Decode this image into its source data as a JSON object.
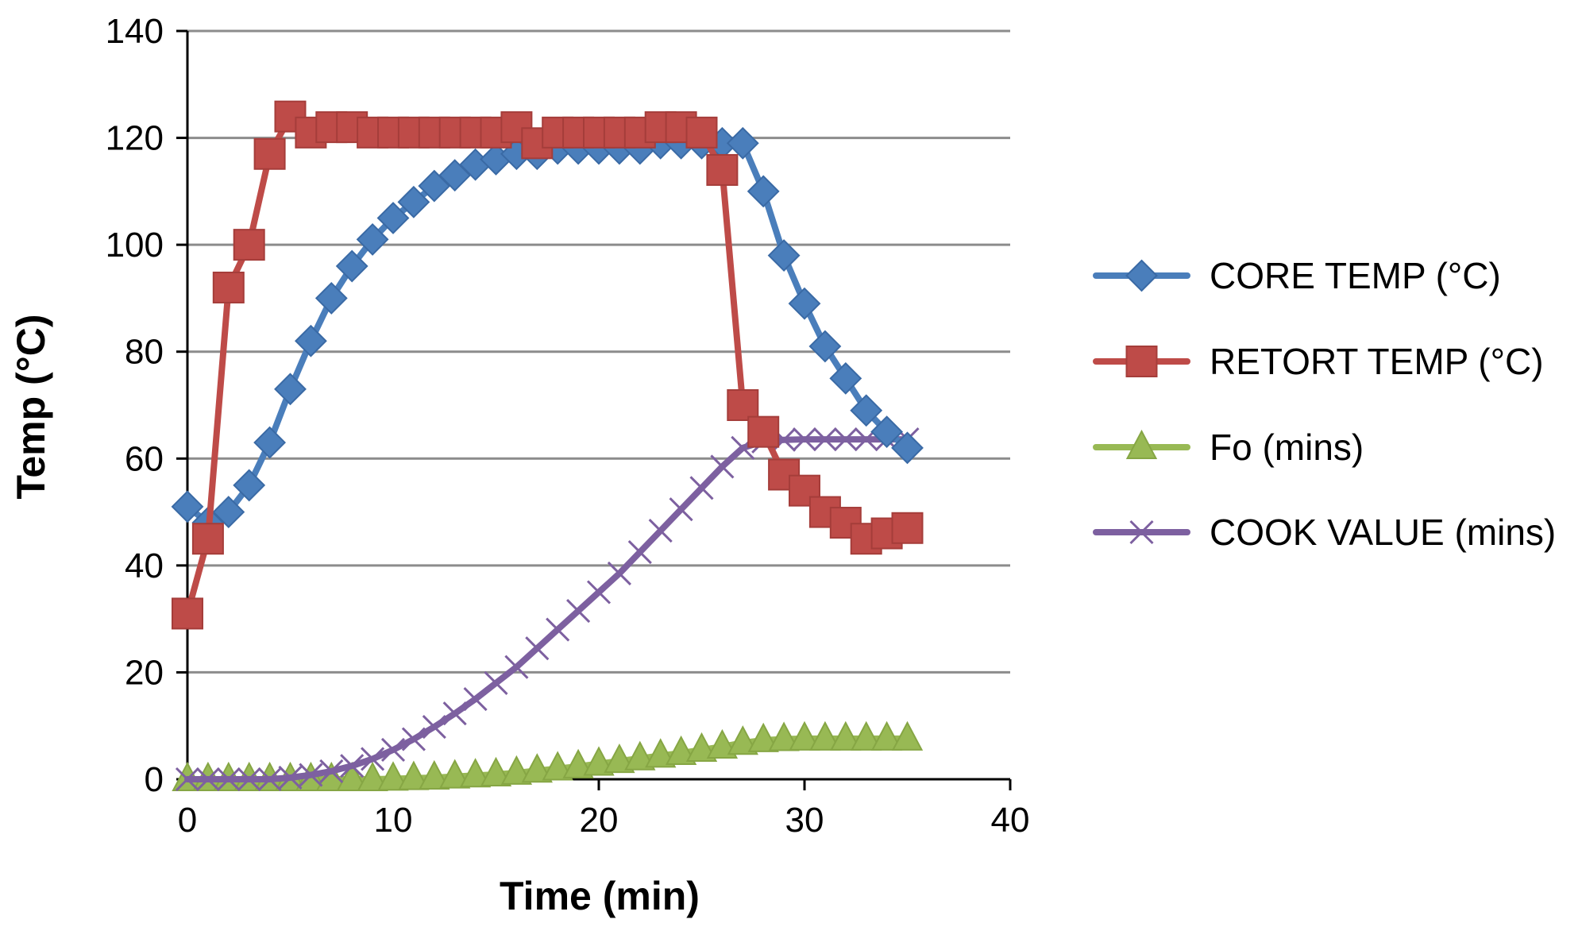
{
  "chart_data": {
    "type": "line",
    "title": "",
    "xlabel": "Time (min)",
    "ylabel": "Temp (°C)",
    "xlim": [
      0,
      40
    ],
    "ylim": [
      0,
      140
    ],
    "xticks": [
      "0",
      "10",
      "20",
      "30",
      "40"
    ],
    "yticks": [
      "0",
      "20",
      "40",
      "60",
      "80",
      "100",
      "120",
      "140"
    ],
    "grid": "horizontal",
    "legend_position": "right",
    "series": [
      {
        "name": "CORE TEMP (°C)",
        "color": "#4a7ebb",
        "marker": "diamond",
        "x": [
          0,
          1,
          2,
          3,
          4,
          5,
          6,
          7,
          8,
          9,
          10,
          11,
          12,
          13,
          14,
          15,
          16,
          17,
          18,
          19,
          20,
          21,
          22,
          23,
          24,
          25,
          26,
          27,
          28,
          29,
          30,
          31,
          32,
          33,
          34,
          35
        ],
        "y": [
          51,
          48,
          50,
          55,
          63,
          73,
          82,
          90,
          96,
          101,
          105,
          108,
          111,
          113,
          115,
          116,
          117,
          117,
          118,
          118,
          118,
          118,
          118,
          119,
          119,
          119,
          119,
          119,
          110,
          98,
          89,
          81,
          75,
          69,
          65,
          62
        ]
      },
      {
        "name": "RETORT TEMP (°C)",
        "color": "#be4b48",
        "marker": "square",
        "x": [
          0,
          1,
          2,
          3,
          4,
          5,
          6,
          7,
          8,
          9,
          10,
          11,
          12,
          13,
          14,
          15,
          16,
          17,
          18,
          19,
          20,
          21,
          22,
          23,
          24,
          25,
          26,
          27,
          28,
          29,
          30,
          31,
          32,
          33,
          34,
          35
        ],
        "y": [
          31,
          45,
          92,
          100,
          117,
          124,
          121,
          122,
          122,
          121,
          121,
          121,
          121,
          121,
          121,
          121,
          122,
          119,
          121,
          121,
          121,
          121,
          121,
          122,
          122,
          121,
          114,
          70,
          65,
          57,
          54,
          50,
          48,
          45,
          46,
          47
        ]
      },
      {
        "name": "Fo (mins)",
        "color": "#98b954",
        "marker": "triangle",
        "x": [
          0,
          1,
          2,
          3,
          4,
          5,
          6,
          7,
          8,
          9,
          10,
          11,
          12,
          13,
          14,
          15,
          16,
          17,
          18,
          19,
          20,
          21,
          22,
          23,
          24,
          25,
          26,
          27,
          28,
          29,
          30,
          31,
          32,
          33,
          34,
          35
        ],
        "y": [
          0,
          0,
          0,
          0,
          0,
          0,
          0,
          0,
          0,
          0,
          0.1,
          0.2,
          0.3,
          0.5,
          0.7,
          0.9,
          1.2,
          1.6,
          2.0,
          2.4,
          2.9,
          3.4,
          3.9,
          4.4,
          4.9,
          5.5,
          6.1,
          6.8,
          7.3,
          7.5,
          7.6,
          7.6,
          7.6,
          7.6,
          7.6,
          7.6
        ]
      },
      {
        "name": "COOK VALUE (mins)",
        "color": "#7d60a0",
        "marker": "x",
        "x": [
          0,
          1,
          2,
          3,
          4,
          5,
          6,
          7,
          8,
          9,
          10,
          11,
          12,
          13,
          14,
          15,
          16,
          17,
          18,
          19,
          20,
          21,
          22,
          23,
          24,
          25,
          26,
          27,
          28,
          29,
          30,
          31,
          32,
          33,
          34,
          35
        ],
        "y": [
          0,
          0,
          0,
          0,
          0,
          0.3,
          0.8,
          1.5,
          2.5,
          3.8,
          5.5,
          7.5,
          9.8,
          12.3,
          15.0,
          18.0,
          21.0,
          24.5,
          28.0,
          31.5,
          35.0,
          38.5,
          42.5,
          46.5,
          50.5,
          54.5,
          58.5,
          62.0,
          63.2,
          63.5,
          63.6,
          63.6,
          63.6,
          63.6,
          63.6,
          63.6
        ]
      }
    ]
  }
}
